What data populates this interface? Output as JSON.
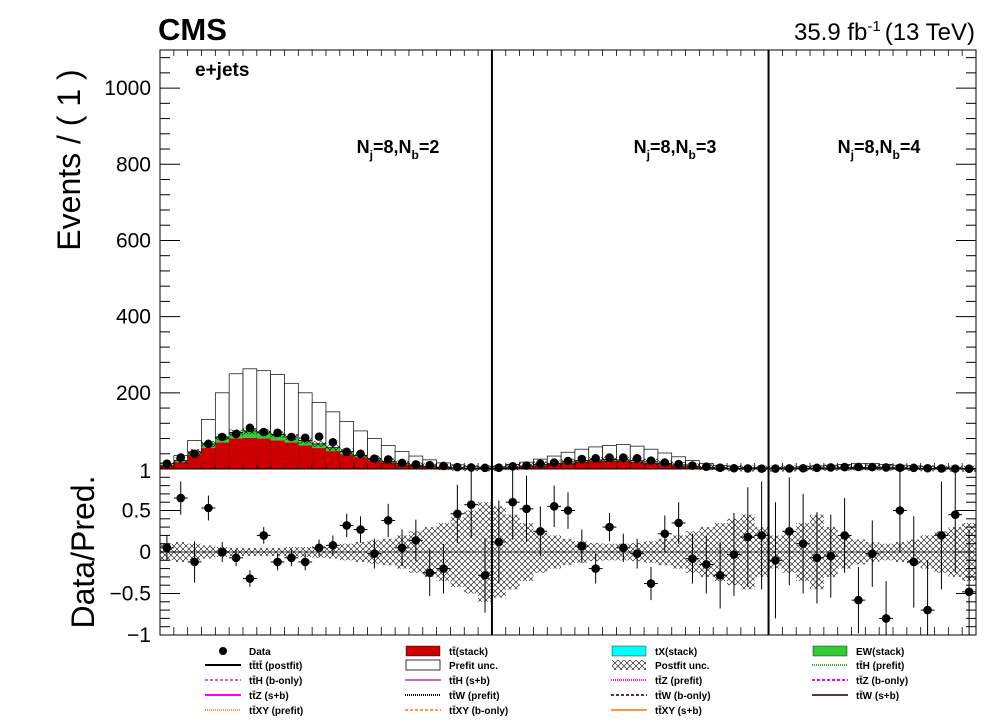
{
  "header": {
    "experiment": "CMS",
    "lumi": "35.9 fb",
    "lumi_exp": "-1",
    "energy": "(13 TeV)"
  },
  "chart_data": [
    {
      "type": "bar",
      "panel": "main",
      "channel": "e+jets",
      "ylabel": "Events / ( 1 )",
      "ylim": [
        0,
        1100
      ],
      "yticks": [
        200,
        400,
        600,
        800,
        1000
      ],
      "ytick_labels": [
        "200",
        "400",
        "600",
        "800",
        "1000"
      ],
      "bottom_label": "1",
      "regions": [
        {
          "label_main": "N",
          "sub1": "j",
          "mid": "=8,N",
          "sub2": "b",
          "end": "=2",
          "bins": [
            0,
            24
          ]
        },
        {
          "label_main": "N",
          "sub1": "j",
          "mid": "=8,N",
          "sub2": "b",
          "end": "=3",
          "bins": [
            24,
            44
          ]
        },
        {
          "label_main": "N",
          "sub1": "j",
          "mid": "=8,N",
          "sub2": "b",
          "end": "=4",
          "bins": [
            44,
            59
          ]
        }
      ],
      "n_bins": 59,
      "prefit_unc": [
        14,
        35,
        75,
        130,
        200,
        250,
        263,
        258,
        248,
        225,
        200,
        175,
        150,
        125,
        100,
        80,
        62,
        46,
        34,
        24,
        16,
        11,
        7,
        5,
        6,
        12,
        18,
        26,
        34,
        44,
        52,
        58,
        62,
        64,
        60,
        52,
        42,
        32,
        22,
        14,
        9,
        6,
        4,
        3,
        3,
        4,
        6,
        8,
        10,
        12,
        14,
        14,
        12,
        10,
        8,
        6,
        4,
        3,
        2
      ],
      "ttbar_stack": [
        8,
        18,
        38,
        55,
        70,
        80,
        82,
        80,
        75,
        70,
        62,
        55,
        47,
        38,
        30,
        23,
        17,
        12,
        9,
        6,
        4,
        3,
        2,
        1.5,
        2,
        4,
        7,
        10,
        13,
        16,
        19,
        21,
        22,
        21,
        19,
        16,
        13,
        9,
        6,
        4,
        2.5,
        1.5,
        1,
        0.8,
        0.8,
        1,
        1.5,
        2,
        2.5,
        3,
        3.5,
        3.5,
        3,
        2.5,
        2,
        1.5,
        1,
        0.8,
        0.5
      ],
      "postfit": [
        10,
        22,
        45,
        66,
        84,
        96,
        100,
        97,
        91,
        84,
        75,
        66,
        56,
        46,
        36,
        27,
        20,
        14,
        10,
        7,
        5,
        3.5,
        2.3,
        1.8,
        2.3,
        5,
        8,
        12,
        15,
        19,
        22,
        24,
        25,
        24,
        22,
        19,
        15,
        11,
        7,
        4.5,
        3,
        1.8,
        1.2,
        0.9,
        0.9,
        1.2,
        1.8,
        2.4,
        3,
        3.5,
        4,
        4,
        3.5,
        3,
        2.4,
        1.8,
        1.2,
        0.9,
        0.6
      ],
      "data": [
        14,
        30,
        40,
        66,
        84,
        92,
        108,
        97,
        95,
        84,
        82,
        85,
        70,
        45,
        40,
        27,
        25,
        16,
        12,
        10,
        8,
        5,
        4,
        3,
        3.5,
        7,
        9,
        14,
        17,
        21,
        26,
        28,
        30,
        30,
        28,
        22,
        17,
        13,
        9,
        6,
        3.5,
        2,
        1.5,
        1,
        1.2,
        1.5,
        2,
        3,
        4,
        5,
        5.5,
        5,
        4,
        3.5,
        3,
        2,
        1.5,
        1,
        0.8
      ]
    },
    {
      "type": "scatter",
      "panel": "ratio",
      "ylabel": "Data/Pred.",
      "ylim": [
        -1,
        1
      ],
      "yticks": [
        -1,
        -0.5,
        0,
        0.5
      ],
      "ytick_labels": [
        "−1",
        "−0.5",
        "0",
        "0.5"
      ],
      "ratio": [
        0.05,
        0.65,
        -0.12,
        0.53,
        0.0,
        -0.07,
        -0.32,
        0.2,
        -0.12,
        -0.07,
        -0.12,
        0.05,
        0.08,
        0.32,
        0.27,
        -0.02,
        0.38,
        0.05,
        0.14,
        -0.25,
        -0.2,
        0.46,
        0.57,
        -0.28,
        0.12,
        0.6,
        0.52,
        0.25,
        0.55,
        0.5,
        0.07,
        -0.2,
        0.3,
        0.05,
        -0.02,
        -0.38,
        0.22,
        0.35,
        -0.08,
        -0.15,
        -0.28,
        -0.03,
        0.18,
        0.2,
        -0.1,
        0.25,
        0.1,
        -0.07,
        -0.05,
        0.2,
        -0.58,
        -0.02,
        -0.8,
        0.5,
        -0.12,
        -0.7,
        0.2,
        0.45,
        -0.48
      ],
      "err_up": [
        0.15,
        0.2,
        0.25,
        0.15,
        0.12,
        0.1,
        0.1,
        0.1,
        0.1,
        0.1,
        0.1,
        0.1,
        0.12,
        0.14,
        0.16,
        0.18,
        0.2,
        0.22,
        0.25,
        0.28,
        0.3,
        0.35,
        0.4,
        0.45,
        0.5,
        0.45,
        0.4,
        0.3,
        0.25,
        0.22,
        0.2,
        0.18,
        0.17,
        0.17,
        0.18,
        0.2,
        0.22,
        0.25,
        0.3,
        0.35,
        0.4,
        0.5,
        0.6,
        0.65,
        0.7,
        0.65,
        0.6,
        0.55,
        0.5,
        0.45,
        0.4,
        0.4,
        0.45,
        0.5,
        0.55,
        0.6,
        0.65,
        0.7,
        0.75
      ],
      "unc_band": [
        0.1,
        0.12,
        0.1,
        0.08,
        0.06,
        0.05,
        0.05,
        0.05,
        0.05,
        0.06,
        0.06,
        0.07,
        0.08,
        0.1,
        0.12,
        0.14,
        0.16,
        0.2,
        0.25,
        0.3,
        0.35,
        0.42,
        0.5,
        0.6,
        0.55,
        0.45,
        0.35,
        0.25,
        0.2,
        0.16,
        0.13,
        0.11,
        0.1,
        0.1,
        0.11,
        0.13,
        0.16,
        0.2,
        0.25,
        0.3,
        0.35,
        0.4,
        0.45,
        0.3,
        0.2,
        0.25,
        0.35,
        0.45,
        0.3,
        0.2,
        0.15,
        0.12,
        0.1,
        0.12,
        0.15,
        0.2,
        0.25,
        0.3,
        0.35
      ]
    }
  ],
  "legend": [
    {
      "key": "data",
      "text": "Data",
      "kind": "marker",
      "color": "#000000"
    },
    {
      "key": "ttbar",
      "text": "tt̄(stack)",
      "kind": "box",
      "color": "#cc0000"
    },
    {
      "key": "tx",
      "text": "tX(stack)",
      "kind": "box",
      "color": "#00ffff"
    },
    {
      "key": "ew",
      "text": "EW(stack)",
      "kind": "box",
      "color": "#33cc33"
    },
    {
      "key": "tttt_post",
      "text": "tt̄tt̄ (postfit)",
      "kind": "line",
      "color": "#000000",
      "dash": ""
    },
    {
      "key": "prefit_unc",
      "text": "Prefit unc.",
      "kind": "openbox",
      "color": "#000000"
    },
    {
      "key": "postfit_unc",
      "text": "Postfit unc.",
      "kind": "hatch",
      "color": "#000000"
    },
    {
      "key": "tth_pre",
      "text": "tt̄H (prefit)",
      "kind": "line",
      "color": "#33aa33",
      "dash": "1,1"
    },
    {
      "key": "tth_bonly",
      "text": "tt̄H (b-only)",
      "kind": "line",
      "color": "#cc66cc",
      "dash": "3,2"
    },
    {
      "key": "tth_sb",
      "text": "tt̄H (s+b)",
      "kind": "line",
      "color": "#cc66cc",
      "dash": ""
    },
    {
      "key": "ttz_pre",
      "text": "tt̄Z (prefit)",
      "kind": "line",
      "color": "#ff00ff",
      "dash": "1,1"
    },
    {
      "key": "ttz_bonly",
      "text": "tt̄Z (b-only)",
      "kind": "line",
      "color": "#ff00ff",
      "dash": "3,2"
    },
    {
      "key": "ttz_sb",
      "text": "tt̄Z (s+b)",
      "kind": "line",
      "color": "#ff00ff",
      "dash": ""
    },
    {
      "key": "ttw_pre",
      "text": "tt̄W (prefit)",
      "kind": "line",
      "color": "#000000",
      "dash": "1,1"
    },
    {
      "key": "ttw_bonly",
      "text": "tt̄W (b-only)",
      "kind": "line",
      "color": "#553355",
      "dash": "3,2"
    },
    {
      "key": "ttw_sb",
      "text": "tt̄W (s+b)",
      "kind": "line",
      "color": "#553355",
      "dash": ""
    },
    {
      "key": "ttxy_pre",
      "text": "tt̄XY (prefit)",
      "kind": "line",
      "color": "#ff9933",
      "dash": "1,1"
    },
    {
      "key": "ttxy_bonly",
      "text": "tt̄XY (b-only)",
      "kind": "line",
      "color": "#ff9933",
      "dash": "3,2"
    },
    {
      "key": "ttxy_sb",
      "text": "tt̄XY (s+b)",
      "kind": "line",
      "color": "#ff9933",
      "dash": ""
    }
  ]
}
